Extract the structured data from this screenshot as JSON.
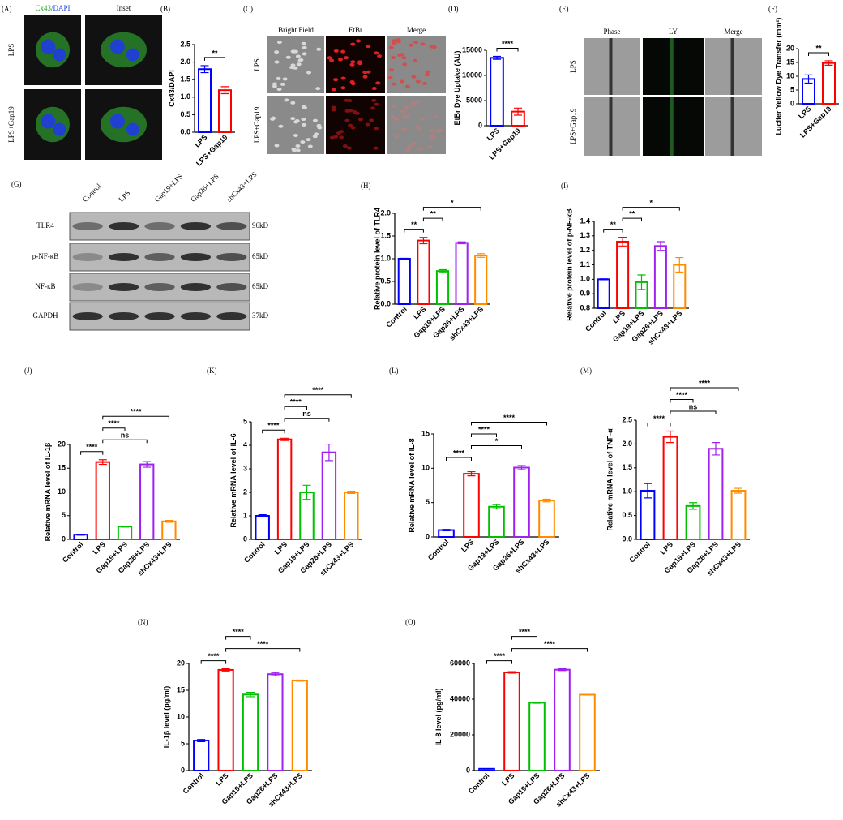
{
  "chart_data": [
    {
      "type": "bar",
      "panel": "(B)",
      "ylabel": "Cx43/DAPI",
      "categories": [
        "LPS",
        "LPS+Gap19"
      ],
      "values": [
        1.8,
        1.2
      ],
      "errors": [
        0.1,
        0.1
      ],
      "colors": [
        "#0000ff",
        "#ff0000"
      ],
      "ylim": [
        0,
        2.5
      ],
      "yticks": [
        {
          "value": 0,
          "label": "0.0"
        },
        0.5,
        {
          "value": 1,
          "label": "1.0"
        },
        1.5,
        {
          "value": 2,
          "label": "2.0"
        },
        2.5
      ],
      "annotations": [
        {
          "text": "**",
          "pair": [
            0,
            1
          ]
        }
      ]
    },
    {
      "type": "bar",
      "panel": "(D)",
      "ylabel": "EtBr Dye Uptake (AU)",
      "categories": [
        "LPS",
        "LPS+Gap19"
      ],
      "values": [
        13500,
        2800
      ],
      "errors": [
        300,
        700
      ],
      "colors": [
        "#0000ff",
        "#ff0000"
      ],
      "ylim": [
        0,
        15000
      ],
      "yticks": [
        0,
        5000,
        10000,
        15000
      ],
      "annotations": [
        {
          "text": "****",
          "pair": [
            0,
            1
          ]
        }
      ]
    },
    {
      "type": "bar",
      "panel": "(F)",
      "ylabel": "Lucifer Yellow Dye Transfer (mm²)",
      "categories": [
        "LPS",
        "LPS+Gap19"
      ],
      "values": [
        9,
        14.8
      ],
      "errors": [
        1.5,
        0.8
      ],
      "colors": [
        "#0000ff",
        "#ff0000"
      ],
      "ylim": [
        0,
        20
      ],
      "yticks": [
        0,
        5,
        10,
        15,
        20
      ],
      "annotations": [
        {
          "text": "**",
          "pair": [
            0,
            1
          ]
        }
      ]
    },
    {
      "type": "bar",
      "panel": "(H)",
      "ylabel": "Relative protein level of TLR4",
      "categories": [
        "Control",
        "LPS",
        "Gap19+LPS",
        "Gap26+LPS",
        "shCx43+LPS"
      ],
      "values": [
        1.0,
        1.4,
        0.73,
        1.35,
        1.07
      ],
      "errors": [
        0.01,
        0.07,
        0.03,
        0.02,
        0.04
      ],
      "colors": [
        "#0000ff",
        "#ff0000",
        "#00c000",
        "#a020f0",
        "#ff8c00"
      ],
      "ylim": [
        0,
        2
      ],
      "yticks": [
        {
          "value": 0,
          "label": "0.0"
        },
        0.5,
        {
          "value": 1,
          "label": "1.0"
        },
        1.5,
        {
          "value": 2,
          "label": "2.0"
        }
      ],
      "annotations": [
        {
          "text": "**",
          "pair": [
            0,
            1
          ]
        },
        {
          "text": "**",
          "pair": [
            1,
            2
          ]
        },
        {
          "text": "*",
          "pair": [
            1,
            4
          ]
        }
      ]
    },
    {
      "type": "bar",
      "panel": "(I)",
      "ylabel": "Relative protein level of p-NF-κB",
      "categories": [
        "Control",
        "LPS",
        "Gap19+LPS",
        "Gap26+LPS",
        "shCx43+LPS"
      ],
      "values": [
        1.0,
        1.26,
        0.98,
        1.23,
        1.1
      ],
      "errors": [
        0.003,
        0.03,
        0.05,
        0.03,
        0.05
      ],
      "colors": [
        "#0000ff",
        "#ff0000",
        "#00c000",
        "#a020f0",
        "#ff8c00"
      ],
      "ylim": [
        0.8,
        1.4
      ],
      "yticks": [
        0.8,
        0.9,
        {
          "value": 1,
          "label": "1.0"
        },
        1.1,
        1.2,
        1.3,
        1.4
      ],
      "annotations": [
        {
          "text": "**",
          "pair": [
            0,
            1
          ]
        },
        {
          "text": "**",
          "pair": [
            1,
            2
          ]
        },
        {
          "text": "*",
          "pair": [
            1,
            4
          ]
        }
      ]
    },
    {
      "type": "bar",
      "panel": "(J)",
      "ylabel": "Relative mRNA level of IL-1β",
      "categories": [
        "Control",
        "LPS",
        "Gap19+LPS",
        "Gap26+LPS",
        "shCx43+LPS"
      ],
      "values": [
        1.0,
        16.3,
        2.7,
        15.8,
        3.8
      ],
      "errors": [
        0.1,
        0.5,
        0.1,
        0.6,
        0.2
      ],
      "colors": [
        "#0000ff",
        "#ff0000",
        "#00c000",
        "#a020f0",
        "#ff8c00"
      ],
      "ylim": [
        0,
        20
      ],
      "yticks": [
        0,
        5,
        10,
        15,
        20
      ],
      "annotations": [
        {
          "text": "****",
          "pair": [
            0,
            1
          ]
        },
        {
          "text": "ns",
          "pair": [
            1,
            3
          ]
        },
        {
          "text": "****",
          "pair": [
            1,
            2
          ]
        },
        {
          "text": "****",
          "pair": [
            1,
            4
          ]
        }
      ]
    },
    {
      "type": "bar",
      "panel": "(K)",
      "ylabel": "Relative mRNA level of IL-6",
      "categories": [
        "Control",
        "LPS",
        "Gap19+LPS",
        "Gap26+LPS",
        "shCx43+LPS"
      ],
      "values": [
        1.0,
        4.25,
        2.0,
        3.7,
        2.0
      ],
      "errors": [
        0.05,
        0.05,
        0.3,
        0.35,
        0.05
      ],
      "colors": [
        "#0000ff",
        "#ff0000",
        "#00c000",
        "#a020f0",
        "#ff8c00"
      ],
      "ylim": [
        0,
        5
      ],
      "yticks": [
        0,
        1,
        2,
        3,
        4,
        5
      ],
      "annotations": [
        {
          "text": "****",
          "pair": [
            0,
            1
          ]
        },
        {
          "text": "ns",
          "pair": [
            1,
            3
          ]
        },
        {
          "text": "****",
          "pair": [
            1,
            2
          ]
        },
        {
          "text": "****",
          "pair": [
            1,
            4
          ]
        }
      ]
    },
    {
      "type": "bar",
      "panel": "(L)",
      "ylabel": "Relative mRNA level of IL-8",
      "categories": [
        "Control",
        "LPS",
        "Gap19+LPS",
        "Gap26+LPS",
        "shCx43+LPS"
      ],
      "values": [
        1.0,
        9.2,
        4.4,
        10.1,
        5.3
      ],
      "errors": [
        0.1,
        0.3,
        0.3,
        0.3,
        0.2
      ],
      "colors": [
        "#0000ff",
        "#ff0000",
        "#00c000",
        "#a020f0",
        "#ff8c00"
      ],
      "ylim": [
        0,
        15
      ],
      "yticks": [
        0,
        5,
        10,
        15
      ],
      "annotations": [
        {
          "text": "****",
          "pair": [
            0,
            1
          ]
        },
        {
          "text": "*",
          "pair": [
            1,
            3
          ]
        },
        {
          "text": "****",
          "pair": [
            1,
            2
          ]
        },
        {
          "text": "****",
          "pair": [
            1,
            4
          ]
        }
      ]
    },
    {
      "type": "bar",
      "panel": "(M)",
      "ylabel": "Relative mRNA level of TNF-α",
      "categories": [
        "Control",
        "LPS",
        "Gap19+LPS",
        "Gap26+LPS",
        "shCx43+LPS"
      ],
      "values": [
        1.02,
        2.15,
        0.7,
        1.9,
        1.02
      ],
      "errors": [
        0.15,
        0.12,
        0.07,
        0.13,
        0.05
      ],
      "colors": [
        "#0000ff",
        "#ff0000",
        "#00c000",
        "#a020f0",
        "#ff8c00"
      ],
      "ylim": [
        0,
        2.5
      ],
      "yticks": [
        {
          "value": 0,
          "label": "0.0"
        },
        0.5,
        {
          "value": 1,
          "label": "1.0"
        },
        1.5,
        {
          "value": 2,
          "label": "2.0"
        },
        2.5
      ],
      "annotations": [
        {
          "text": "****",
          "pair": [
            0,
            1
          ]
        },
        {
          "text": "ns",
          "pair": [
            1,
            3
          ]
        },
        {
          "text": "****",
          "pair": [
            1,
            2
          ]
        },
        {
          "text": "****",
          "pair": [
            1,
            4
          ]
        }
      ]
    },
    {
      "type": "bar",
      "panel": "(N)",
      "ylabel": "IL-1β level (pg/ml)",
      "categories": [
        "Control",
        "LPS",
        "Gap19+LPS",
        "Gap26+LPS",
        "shCx43+LPS"
      ],
      "values": [
        5.6,
        18.8,
        14.2,
        18.0,
        16.8
      ],
      "errors": [
        0.2,
        0.2,
        0.4,
        0.3,
        0.1
      ],
      "colors": [
        "#0000ff",
        "#ff0000",
        "#00c000",
        "#a020f0",
        "#ff8c00"
      ],
      "ylim": [
        0,
        20
      ],
      "yticks": [
        0,
        5,
        10,
        15,
        20
      ],
      "annotations": [
        {
          "text": "****",
          "pair": [
            0,
            1
          ]
        },
        {
          "text": "****",
          "pair": [
            1,
            4
          ]
        },
        {
          "text": "****",
          "pair": [
            1,
            2
          ]
        }
      ]
    },
    {
      "type": "bar",
      "panel": "(O)",
      "ylabel": "IL-8 level (pg/ml)",
      "categories": [
        "Control",
        "LPS",
        "Gap19+LPS",
        "Gap26+LPS",
        "shCx43+LPS"
      ],
      "values": [
        1000,
        55000,
        38000,
        56500,
        42500
      ],
      "errors": [
        100,
        400,
        300,
        500,
        200
      ],
      "colors": [
        "#0000ff",
        "#ff0000",
        "#00c000",
        "#a020f0",
        "#ff8c00"
      ],
      "ylim": [
        0,
        60000
      ],
      "yticks": [
        0,
        20000,
        40000,
        60000
      ],
      "annotations": [
        {
          "text": "****",
          "pair": [
            0,
            1
          ]
        },
        {
          "text": "****",
          "pair": [
            1,
            4
          ]
        },
        {
          "text": "****",
          "pair": [
            1,
            2
          ]
        }
      ]
    }
  ],
  "images": [
    {
      "panel": "(A)",
      "title_parts": [
        "Cx43",
        "/DAPI"
      ],
      "columns": [
        "Inset"
      ],
      "rows": [
        "LPS",
        "LPS+Gap19"
      ]
    },
    {
      "panel": "(C)",
      "columns": [
        "Bright Field",
        "EtBr",
        "Merge"
      ],
      "rows": [
        "LPS",
        "LPS+Gap19"
      ]
    },
    {
      "panel": "(E)",
      "columns": [
        "Phase",
        "LY",
        "Merge"
      ],
      "rows": [
        "LPS",
        "LPS+Gap19"
      ]
    }
  ],
  "blot": {
    "panel": "(G)",
    "lanes": [
      "Control",
      "LPS",
      "Gap19+LPS",
      "Gap26+LPS",
      "shCx43+LPS"
    ],
    "rows": [
      {
        "label": "TLR4",
        "size": "96kD"
      },
      {
        "label": "p-NF-κB",
        "size": "65kD"
      },
      {
        "label": "NF-κB",
        "size": "65kD"
      },
      {
        "label": "GAPDH",
        "size": "37kD"
      }
    ]
  }
}
